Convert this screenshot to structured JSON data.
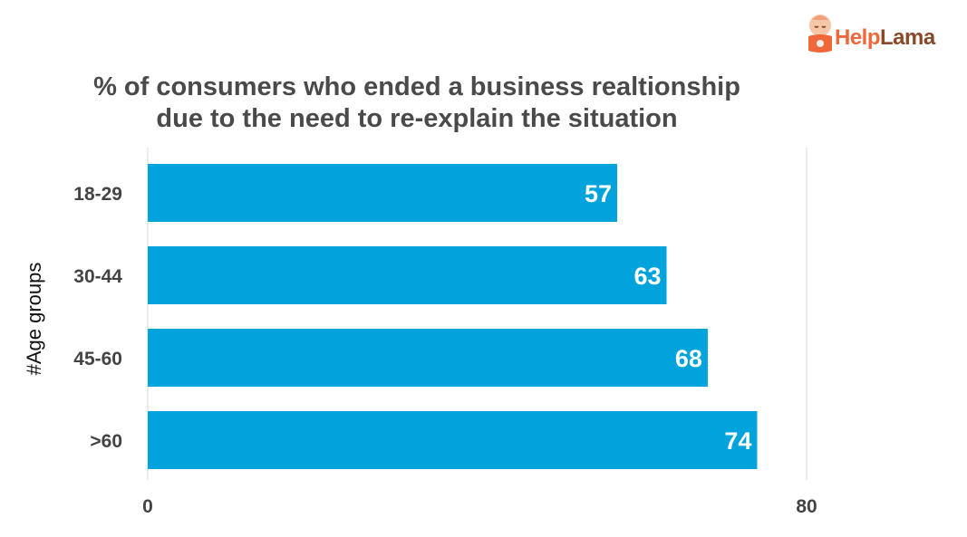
{
  "brand": {
    "logo_part1": "Help",
    "logo_part2": "Lama",
    "logo_icon": "lama-mascot-icon",
    "colors": {
      "orange": "#f0673a",
      "brown": "#8a4a2a"
    }
  },
  "chart_data": {
    "type": "bar",
    "orientation": "horizontal",
    "title_line1": "% of consumers who ended a business realtionship",
    "title_line2": "due to the need to re-explain the situation",
    "xlabel": "",
    "ylabel": "#Age groups",
    "categories": [
      "18-29",
      "30-44",
      "45-60",
      ">60"
    ],
    "values": [
      57,
      63,
      68,
      74
    ],
    "xlim": [
      0,
      80
    ],
    "x_ticks": [
      0,
      80
    ],
    "grid": "vertical at x-axis ends",
    "bar_color": "#00a3dc",
    "data_labels": true
  }
}
